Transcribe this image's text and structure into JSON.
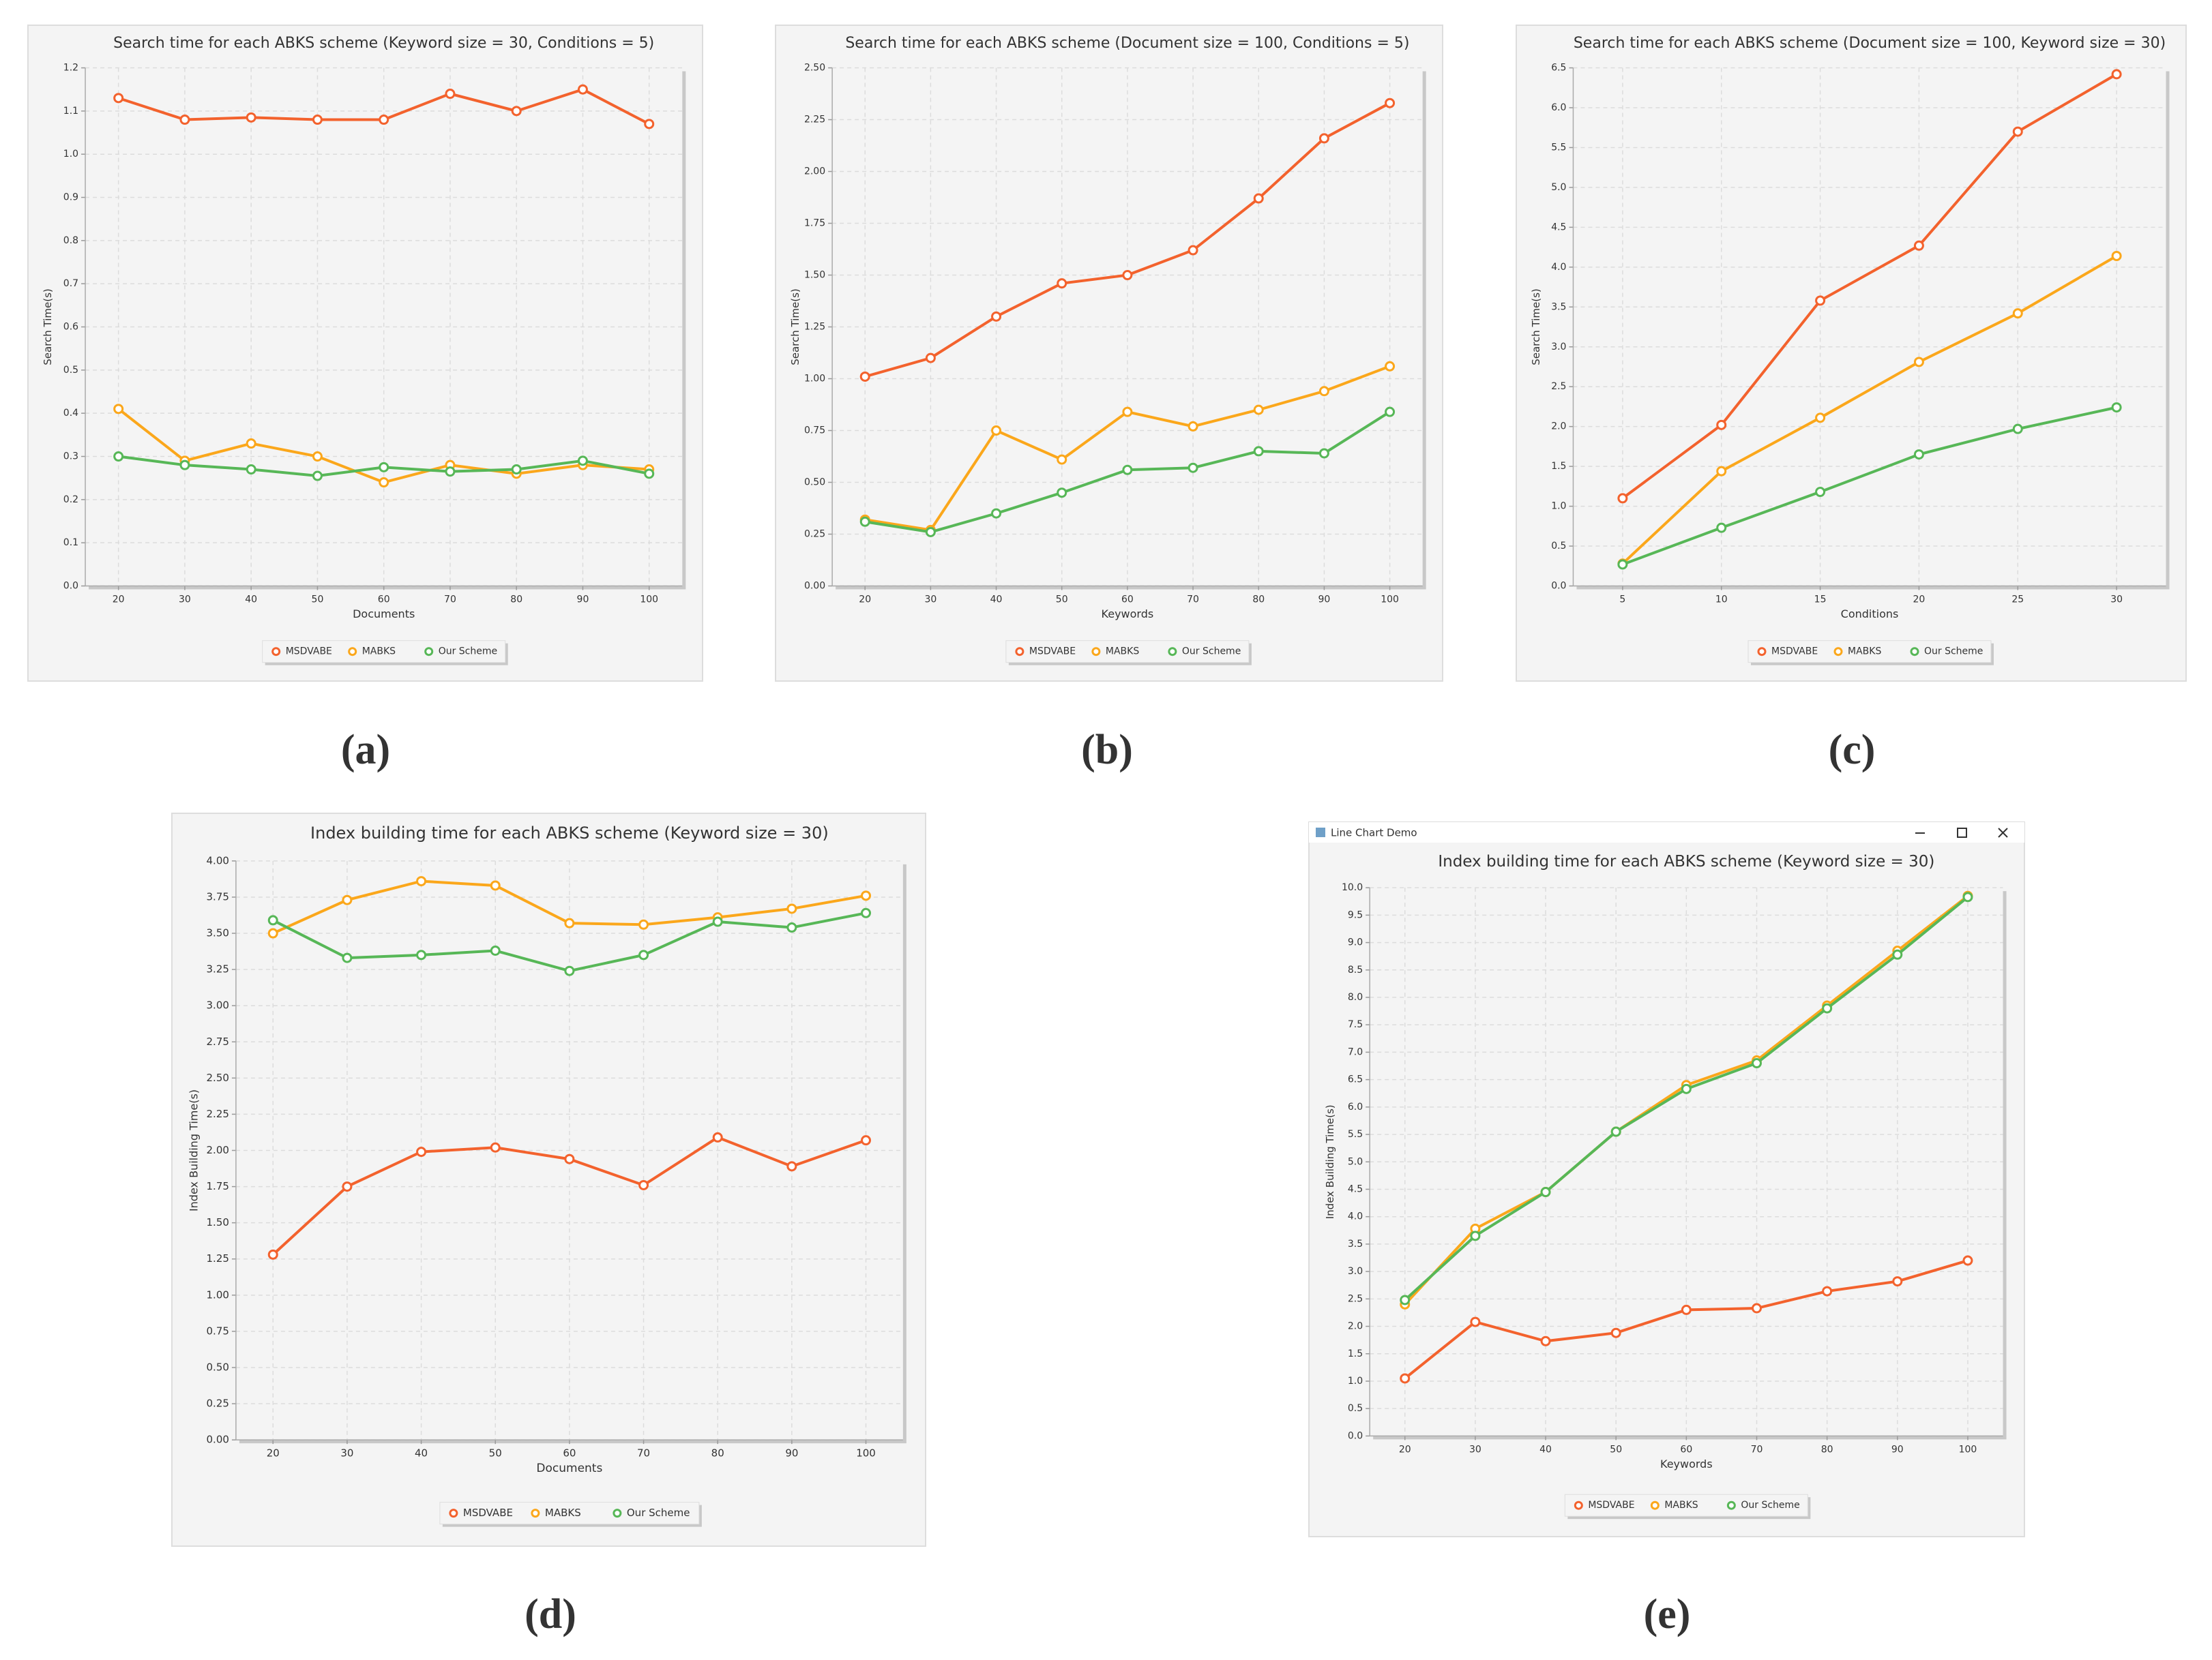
{
  "chart_data": [
    {
      "type": "line",
      "caption": "(a)",
      "title": "Search time for each ABKS scheme (Keyword size = 30, Conditions = 5)",
      "x_label": "Documents",
      "y_label": "Search Time(s)",
      "categories": [
        "20",
        "30",
        "40",
        "50",
        "60",
        "70",
        "80",
        "90",
        "100"
      ],
      "series": [
        {
          "name": "MSDVABE",
          "color": "#f3622d",
          "values": [
            1.13,
            1.08,
            1.085,
            1.08,
            1.08,
            1.14,
            1.1,
            1.15,
            1.07
          ]
        },
        {
          "name": "MABKS",
          "color": "#fba71b",
          "values": [
            0.41,
            0.29,
            0.33,
            0.3,
            0.24,
            0.28,
            0.26,
            0.28,
            0.27
          ]
        },
        {
          "name": "Our Scheme",
          "color": "#57b757",
          "values": [
            0.3,
            0.28,
            0.27,
            0.255,
            0.275,
            0.265,
            0.27,
            0.29,
            0.26
          ]
        }
      ],
      "ylim": [
        0,
        1.2
      ],
      "yticks": [
        {
          "value": 0,
          "label": "0.0"
        },
        0.1,
        0.2,
        0.3,
        0.4,
        0.5,
        0.6,
        0.7,
        0.8,
        0.9,
        {
          "value": 1,
          "label": "1.0"
        },
        1.1,
        1.2
      ],
      "grid": true,
      "legend": "bottom"
    },
    {
      "type": "line",
      "caption": "(b)",
      "title": "Search time for each ABKS scheme (Document size = 100, Conditions = 5)",
      "x_label": "Keywords",
      "y_label": "Search Time(s)",
      "categories": [
        "20",
        "30",
        "40",
        "50",
        "60",
        "70",
        "80",
        "90",
        "100"
      ],
      "series": [
        {
          "name": "MSDVABE",
          "color": "#f3622d",
          "values": [
            1.01,
            1.1,
            1.3,
            1.46,
            1.5,
            1.62,
            1.87,
            2.16,
            2.33
          ]
        },
        {
          "name": "MABKS",
          "color": "#fba71b",
          "values": [
            0.32,
            0.27,
            0.75,
            0.61,
            0.84,
            0.77,
            0.85,
            0.94,
            1.06
          ]
        },
        {
          "name": "Our Scheme",
          "color": "#57b757",
          "values": [
            0.31,
            0.26,
            0.35,
            0.45,
            0.56,
            0.57,
            0.65,
            0.64,
            0.84
          ]
        }
      ],
      "ylim": [
        0,
        2.5
      ],
      "yticks": [
        {
          "value": 0,
          "label": "0.00"
        },
        0.25,
        {
          "value": 0.5,
          "label": "0.50"
        },
        0.75,
        {
          "value": 1,
          "label": "1.00"
        },
        1.25,
        {
          "value": 1.5,
          "label": "1.50"
        },
        1.75,
        {
          "value": 2,
          "label": "2.00"
        },
        2.25,
        {
          "value": 2.5,
          "label": "2.50"
        }
      ],
      "grid": true,
      "legend": "bottom"
    },
    {
      "type": "line",
      "caption": "(c)",
      "title": "Search time for each ABKS scheme (Document size = 100, Keyword size = 30)",
      "x_label": "Conditions",
      "y_label": "Search Time(s)",
      "categories": [
        "5",
        "10",
        "15",
        "20",
        "25",
        "30"
      ],
      "series": [
        {
          "name": "MSDVABE",
          "color": "#f3622d",
          "values": [
            1.1,
            2.02,
            3.58,
            4.27,
            5.7,
            6.42
          ]
        },
        {
          "name": "MABKS",
          "color": "#fba71b",
          "values": [
            0.28,
            1.44,
            2.11,
            2.81,
            3.42,
            4.14
          ]
        },
        {
          "name": "Our Scheme",
          "color": "#57b757",
          "values": [
            0.27,
            0.73,
            1.18,
            1.65,
            1.97,
            2.24
          ]
        }
      ],
      "ylim": [
        0,
        6.5
      ],
      "yticks": [
        {
          "value": 0,
          "label": "0.0"
        },
        0.5,
        {
          "value": 1,
          "label": "1.0"
        },
        1.5,
        {
          "value": 2,
          "label": "2.0"
        },
        2.5,
        {
          "value": 3,
          "label": "3.0"
        },
        3.5,
        {
          "value": 4,
          "label": "4.0"
        },
        4.5,
        {
          "value": 5,
          "label": "5.0"
        },
        5.5,
        {
          "value": 6,
          "label": "6.0"
        },
        6.5
      ],
      "grid": true,
      "legend": "bottom"
    },
    {
      "type": "line",
      "caption": "(d)",
      "title": "Index building time for each ABKS scheme (Keyword size = 30)",
      "x_label": "Documents",
      "y_label": "Index Building Time(s)",
      "categories": [
        "20",
        "30",
        "40",
        "50",
        "60",
        "70",
        "80",
        "90",
        "100"
      ],
      "series": [
        {
          "name": "MSDVABE",
          "color": "#f3622d",
          "values": [
            1.28,
            1.75,
            1.99,
            2.02,
            1.94,
            1.76,
            2.09,
            1.89,
            2.07
          ]
        },
        {
          "name": "MABKS",
          "color": "#fba71b",
          "values": [
            3.5,
            3.73,
            3.86,
            3.83,
            3.57,
            3.56,
            3.61,
            3.67,
            3.76
          ]
        },
        {
          "name": "Our Scheme",
          "color": "#57b757",
          "values": [
            3.59,
            3.33,
            3.35,
            3.38,
            3.24,
            3.35,
            3.58,
            3.54,
            3.64
          ]
        }
      ],
      "ylim": [
        0,
        4
      ],
      "yticks": [
        {
          "value": 0,
          "label": "0.00"
        },
        0.25,
        {
          "value": 0.5,
          "label": "0.50"
        },
        0.75,
        {
          "value": 1,
          "label": "1.00"
        },
        1.25,
        {
          "value": 1.5,
          "label": "1.50"
        },
        1.75,
        {
          "value": 2,
          "label": "2.00"
        },
        2.25,
        {
          "value": 2.5,
          "label": "2.50"
        },
        2.75,
        {
          "value": 3,
          "label": "3.00"
        },
        3.25,
        {
          "value": 3.5,
          "label": "3.50"
        },
        3.75,
        {
          "value": 4,
          "label": "4.00"
        }
      ],
      "grid": true,
      "legend": "bottom"
    },
    {
      "type": "line",
      "caption": "(e)",
      "window_title": "Line Chart Demo",
      "title": "Index building time for each ABKS scheme (Keyword size = 30)",
      "x_label": "Keywords",
      "y_label": "Index Building Time(s)",
      "categories": [
        "20",
        "30",
        "40",
        "50",
        "60",
        "70",
        "80",
        "90",
        "100"
      ],
      "series": [
        {
          "name": "MSDVABE",
          "color": "#f3622d",
          "values": [
            1.05,
            2.08,
            1.73,
            1.88,
            2.3,
            2.33,
            2.64,
            2.82,
            3.2
          ]
        },
        {
          "name": "MABKS",
          "color": "#fba71b",
          "values": [
            2.4,
            3.78,
            4.45,
            5.55,
            6.4,
            6.85,
            7.85,
            8.85,
            9.85
          ]
        },
        {
          "name": "Our Scheme",
          "color": "#57b757",
          "values": [
            2.48,
            3.65,
            4.45,
            5.55,
            6.33,
            6.8,
            7.8,
            8.78,
            9.83
          ]
        }
      ],
      "ylim": [
        0,
        10
      ],
      "yticks": [
        {
          "value": 0,
          "label": "0.0"
        },
        0.5,
        {
          "value": 1,
          "label": "1.0"
        },
        1.5,
        {
          "value": 2,
          "label": "2.0"
        },
        2.5,
        {
          "value": 3,
          "label": "3.0"
        },
        3.5,
        {
          "value": 4,
          "label": "4.0"
        },
        4.5,
        {
          "value": 5,
          "label": "5.0"
        },
        5.5,
        {
          "value": 6,
          "label": "6.0"
        },
        6.5,
        {
          "value": 7,
          "label": "7.0"
        },
        7.5,
        {
          "value": 8,
          "label": "8.0"
        },
        8.5,
        {
          "value": 9,
          "label": "9.0"
        },
        9.5,
        {
          "value": 10,
          "label": "10.0"
        }
      ],
      "grid": true,
      "legend": "bottom"
    }
  ]
}
